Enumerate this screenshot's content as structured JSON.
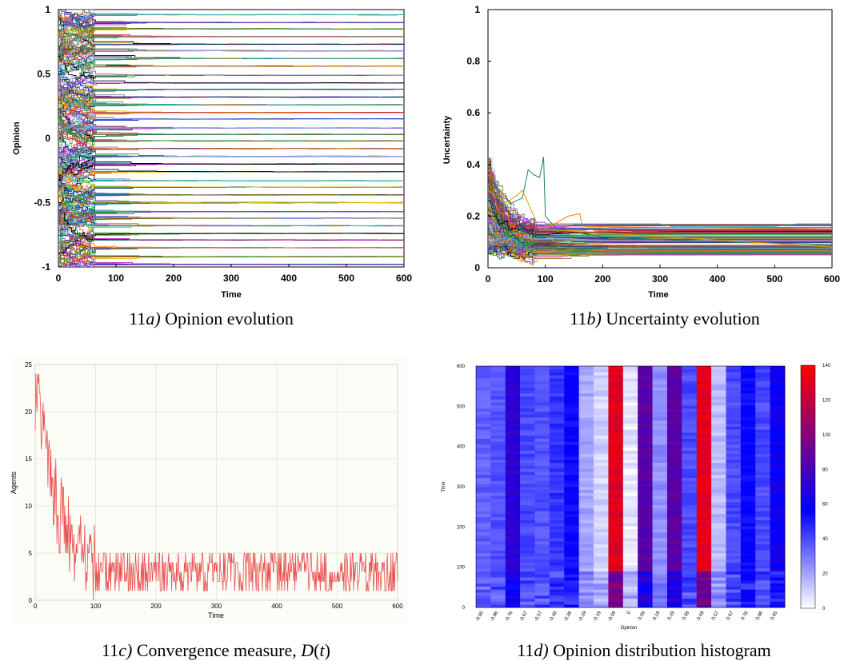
{
  "panels": {
    "a": {
      "caption_num": "11",
      "caption_letter": "a)",
      "caption_rest": " Opinion evolution"
    },
    "b": {
      "caption_num": "11",
      "caption_letter": "b)",
      "caption_rest": " Uncertainty evolution"
    },
    "c": {
      "caption_num": "11",
      "caption_letter": "c)",
      "caption_rest": " Convergence measure, ",
      "caption_fn": "D",
      "caption_arg": "t",
      "caption_paren_open": "(",
      "caption_paren_close": ")"
    },
    "d": {
      "caption_num": "11",
      "caption_letter": "d)",
      "caption_rest": " Opinion distribution histogram"
    }
  },
  "chart_data": [
    {
      "id": "a",
      "type": "line",
      "title": "",
      "xlabel": "Time",
      "ylabel": "Opinion",
      "xlim": [
        0,
        600
      ],
      "ylim": [
        -1,
        1
      ],
      "xticks": [
        "0",
        "100",
        "200",
        "300",
        "400",
        "500",
        "600"
      ],
      "yticks": [
        "-1",
        "-0.5",
        "0",
        "0.5",
        "1"
      ],
      "description_series": "many agent trajectories converging onto discrete opinion clusters",
      "clusters": [
        -0.98,
        -0.92,
        -0.85,
        -0.79,
        -0.74,
        -0.68,
        -0.62,
        -0.57,
        -0.5,
        -0.44,
        -0.38,
        -0.33,
        -0.26,
        -0.2,
        -0.14,
        -0.08,
        -0.02,
        0.03,
        0.08,
        0.15,
        0.2,
        0.26,
        0.32,
        0.38,
        0.43,
        0.49,
        0.56,
        0.62,
        0.68,
        0.73,
        0.79,
        0.85,
        0.9,
        0.96
      ],
      "grid": false
    },
    {
      "id": "b",
      "type": "line",
      "title": "",
      "xlabel": "Time",
      "ylabel": "Uncertainty",
      "xlim": [
        0,
        600
      ],
      "ylim": [
        0,
        1
      ],
      "xticks": [
        "0",
        "100",
        "200",
        "300",
        "400",
        "500",
        "600"
      ],
      "yticks": [
        "0",
        "0.2",
        "0.4",
        "0.6",
        "0.8",
        "1"
      ],
      "start_range": [
        0.05,
        0.43
      ],
      "end_range": [
        0.05,
        0.17
      ],
      "grid": false
    },
    {
      "id": "c",
      "type": "line",
      "title": "",
      "xlabel": "Time",
      "ylabel": "Agents",
      "xlim": [
        0,
        600
      ],
      "ylim": [
        0,
        25
      ],
      "xticks": [
        "0",
        "100",
        "200",
        "300",
        "400",
        "500",
        "600"
      ],
      "yticks": [
        "0",
        "5",
        "10",
        "15",
        "20",
        "25"
      ],
      "series": [
        {
          "color": "#e85050",
          "peak": 24,
          "tail_mean": 2.5
        }
      ],
      "grid": true
    },
    {
      "id": "d",
      "type": "heatmap",
      "title": "",
      "xlabel": "Opinion",
      "ylabel": "Time",
      "ylim": [
        0,
        600
      ],
      "xticks": [
        "-0.95",
        "-0.86",
        "-0.76",
        "-0.67",
        "-0.57",
        "-0.48",
        "-0.38",
        "-0.29",
        "-0.19",
        "-0.09",
        "0",
        "0.09",
        "0.19",
        "0.29",
        "0.38",
        "0.48",
        "0.57",
        "0.67",
        "0.76",
        "0.86",
        "0.95"
      ],
      "yticks": [
        "0",
        "100",
        "200",
        "300",
        "400",
        "500",
        "600"
      ],
      "colorbar_ticks": [
        "0",
        "20",
        "40",
        "60",
        "80",
        "100",
        "120",
        "140"
      ],
      "colorbar_range": [
        0,
        140
      ],
      "column_values": [
        35,
        38,
        70,
        40,
        38,
        45,
        55,
        20,
        10,
        130,
        5,
        85,
        25,
        85,
        40,
        130,
        15,
        40,
        55,
        40,
        60
      ],
      "colormap": [
        "#ffffff",
        "#0000ff",
        "#ff0000"
      ]
    }
  ]
}
